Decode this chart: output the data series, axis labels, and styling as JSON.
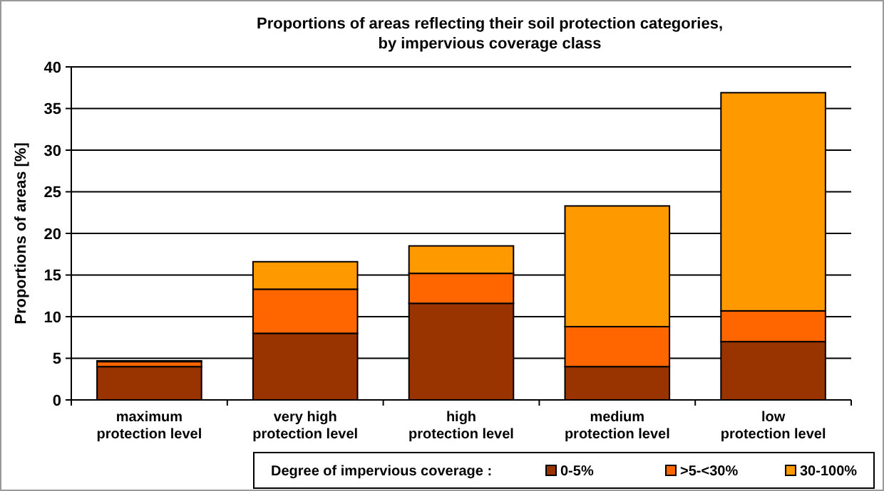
{
  "chart_data": {
    "type": "bar",
    "title": "Proportions of areas reflecting their soil protection categories,\nby impervious coverage class",
    "ylabel": "Proportions of areas [%]",
    "legend_title": "Degree of impervious coverage :",
    "categories": [
      "maximum\nprotection level",
      "very high\nprotection level",
      "high\nprotection level",
      "medium\nprotection level",
      "low\nprotection level"
    ],
    "series": [
      {
        "name": "0-5%",
        "color": "#993300",
        "values": [
          4.0,
          8.0,
          11.6,
          4.0,
          7.0
        ]
      },
      {
        "name": ">5-<30%",
        "color": "#ff6600",
        "values": [
          0.6,
          5.3,
          3.6,
          4.8,
          3.7
        ]
      },
      {
        "name": "30-100%",
        "color": "#ff9900",
        "values": [
          0.1,
          3.3,
          3.3,
          14.5,
          26.2
        ]
      }
    ],
    "stacked": true,
    "ylim": [
      0,
      40
    ],
    "yticks": [
      0,
      5,
      10,
      15,
      20,
      25,
      30,
      35,
      40
    ],
    "grid": "y",
    "legend": "bottom"
  }
}
